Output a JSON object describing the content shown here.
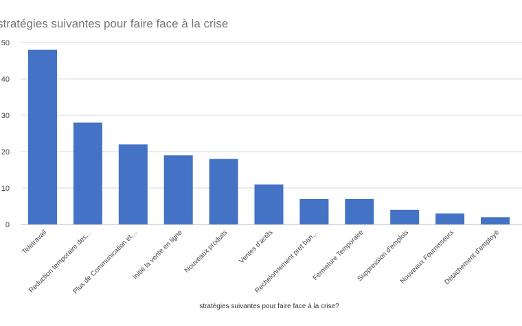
{
  "chart_data": {
    "type": "bar",
    "title": "stratégies suivantes pour faire face à la crise",
    "xlabel": "stratégies suivantes pour faire face à la crise?",
    "ylabel": "",
    "categories": [
      "Teletravail",
      "Reduction temporaire des…",
      "Plus de Communication et…",
      "Initié la vente en ligne",
      "Nouveaux produits",
      "Ventes d'actifs",
      "Rechelonnement pret ban…",
      "Fermeture Temporaire",
      "Suppression d'emplois",
      "Nouveaux Fournisseurs",
      "Détachement d'employé"
    ],
    "values": [
      48,
      28,
      22,
      19,
      18,
      11,
      7,
      7,
      4,
      3,
      2
    ],
    "ylim": [
      0,
      50
    ],
    "yticks": [
      "0",
      "10",
      "20",
      "30",
      "40",
      "50"
    ],
    "grid": true,
    "legend": "none",
    "bar_color": "#4472c4"
  }
}
